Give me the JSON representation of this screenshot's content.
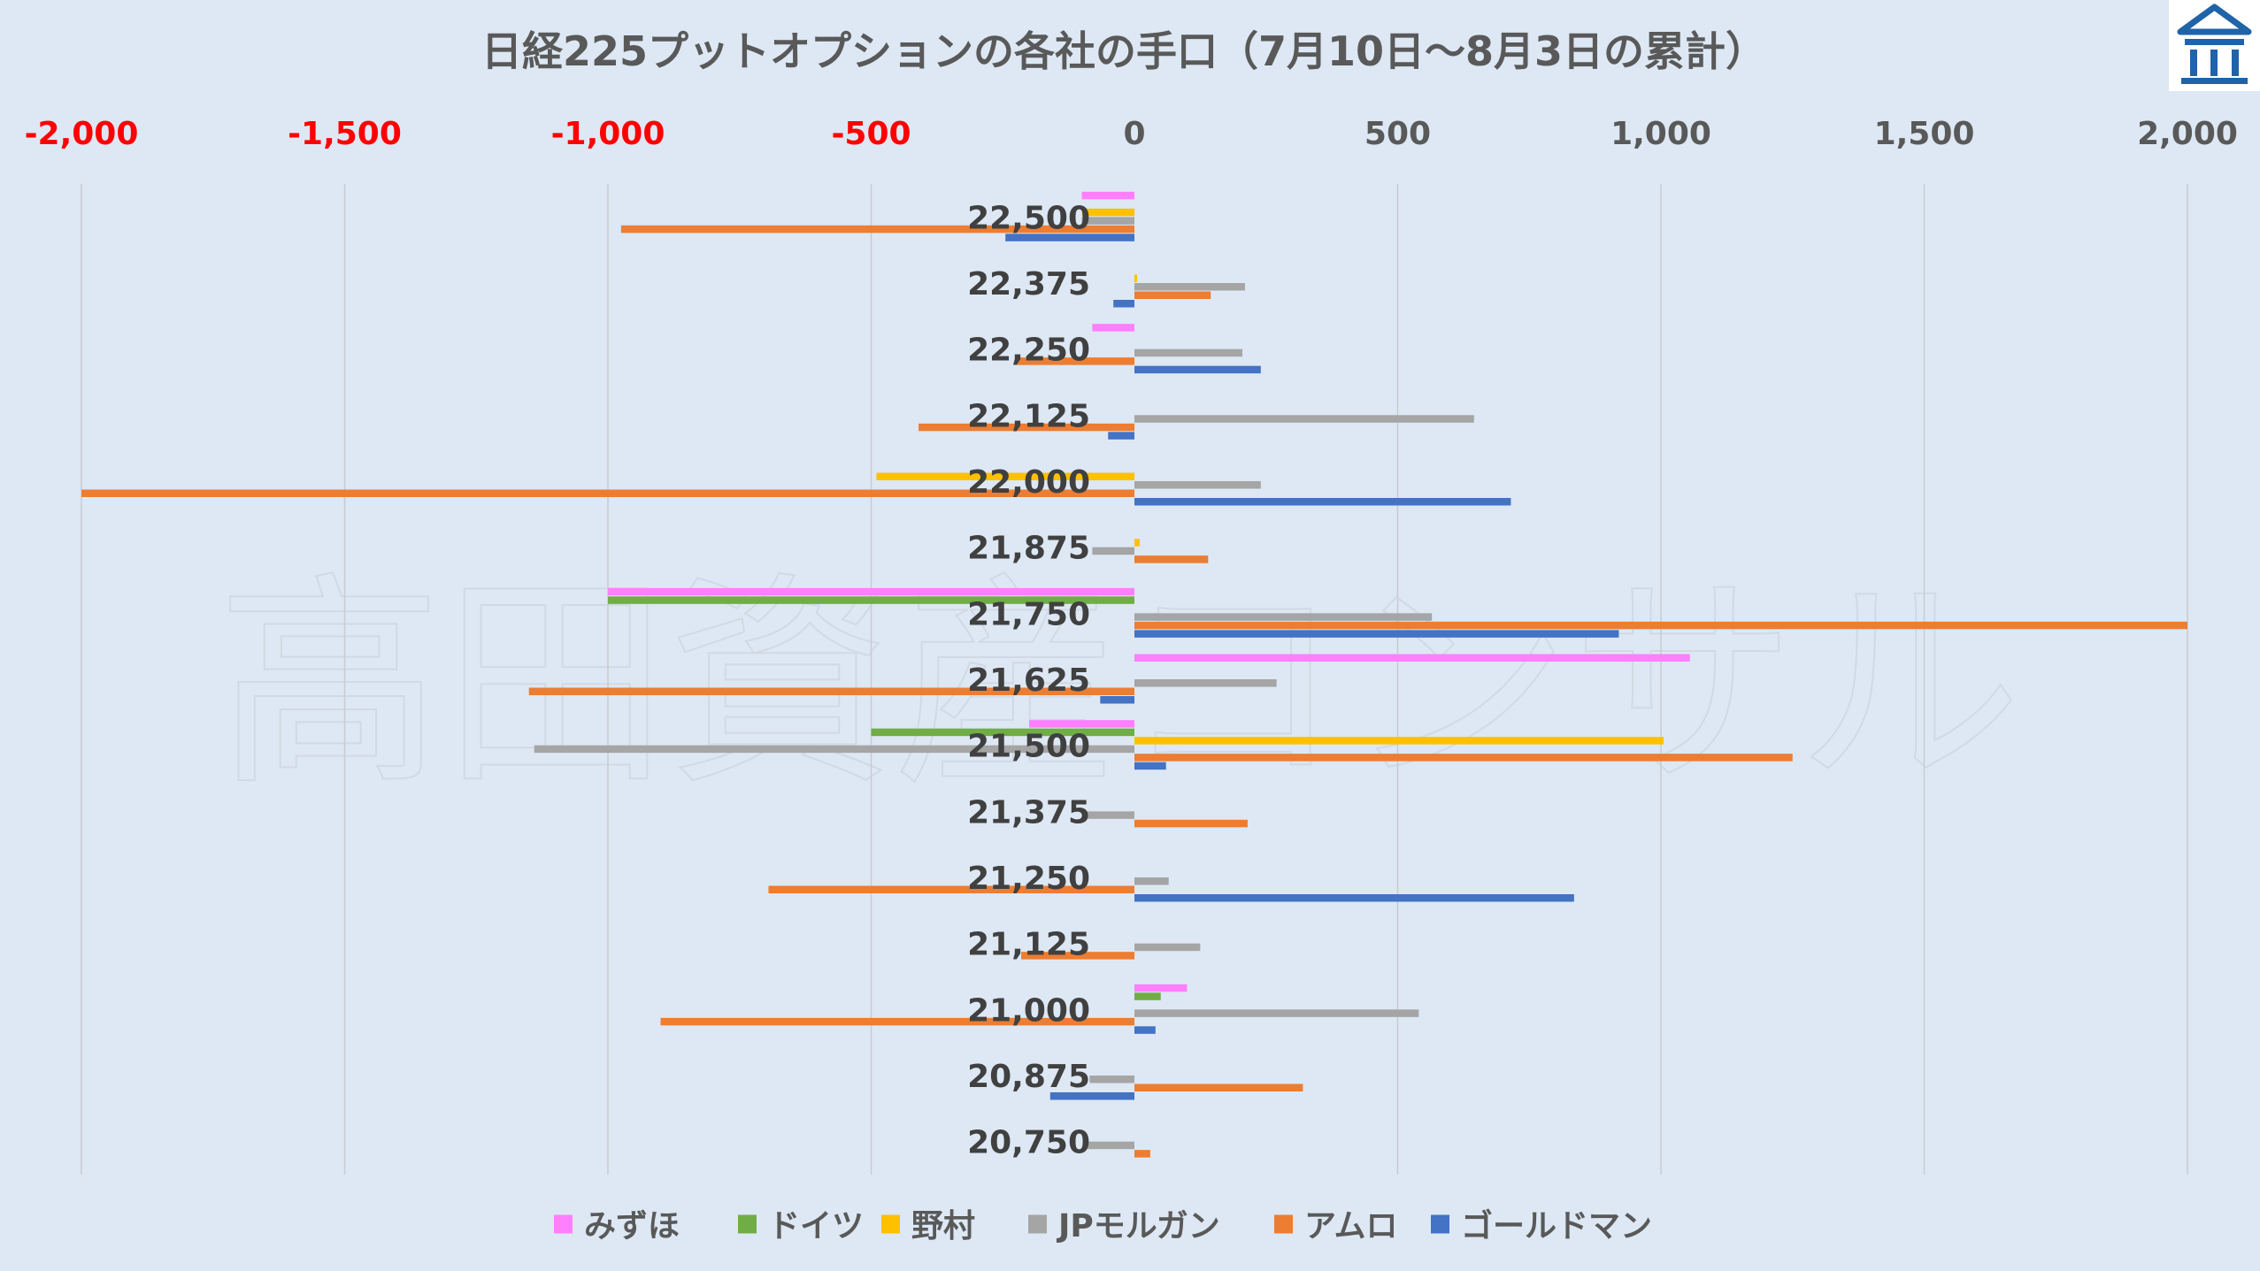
{
  "watermark_text": "高田資産コンサル",
  "logo_icon": "temple-building-logo-icon",
  "colors": {
    "background": "#dde8f4",
    "negative_tick": "#ff0000",
    "positive_tick": "#595959",
    "gridline": "#c9ccd0",
    "logo": "#1f63a8"
  },
  "chart_data": {
    "type": "bar",
    "orientation": "horizontal",
    "title": "日経225プットオプションの各社の手口（7月10日～8月3日の累計）",
    "xlim": [
      -2000,
      2000
    ],
    "xticks": [
      -2000,
      -1500,
      -1000,
      -500,
      0,
      500,
      1000,
      1500,
      2000
    ],
    "xtick_labels": [
      "-2,000",
      "-1,500",
      "-1,000",
      "-500",
      "0",
      "500",
      "1,000",
      "1,500",
      "2,000"
    ],
    "grid": true,
    "legend_position": "bottom",
    "categories": [
      "22,500",
      "22,375",
      "22,250",
      "22,125",
      "22,000",
      "21,875",
      "21,750",
      "21,625",
      "21,500",
      "21,375",
      "21,250",
      "21,125",
      "21,000",
      "20,875",
      "20,750"
    ],
    "series": [
      {
        "name": "みずほ",
        "color": "#ff7fff",
        "values": [
          -100,
          0,
          -80,
          0,
          0,
          0,
          -1000,
          1055,
          -200,
          0,
          0,
          0,
          100,
          0,
          0
        ]
      },
      {
        "name": "ドイツ",
        "color": "#70ad47",
        "values": [
          0,
          0,
          0,
          0,
          0,
          0,
          -1000,
          0,
          -500,
          0,
          0,
          0,
          50,
          0,
          0
        ]
      },
      {
        "name": "野村",
        "color": "#ffc000",
        "values": [
          -100,
          5,
          0,
          0,
          -490,
          10,
          0,
          0,
          1005,
          0,
          0,
          0,
          0,
          0,
          0
        ]
      },
      {
        "name": "JPモルガン",
        "color": "#a5a5a5",
        "values": [
          -100,
          210,
          205,
          645,
          240,
          -80,
          565,
          270,
          -1140,
          -90,
          65,
          125,
          540,
          -85,
          -95
        ]
      },
      {
        "name": "アムロ",
        "color": "#ed7d31",
        "values": [
          -975,
          145,
          -225,
          -410,
          -2000,
          140,
          2000,
          -1150,
          1250,
          215,
          -695,
          -215,
          -900,
          320,
          30
        ]
      },
      {
        "name": "ゴールドマン",
        "color": "#4472c4",
        "values": [
          -245,
          -40,
          240,
          -50,
          715,
          0,
          920,
          -65,
          60,
          0,
          835,
          0,
          40,
          -160,
          0
        ]
      }
    ]
  }
}
